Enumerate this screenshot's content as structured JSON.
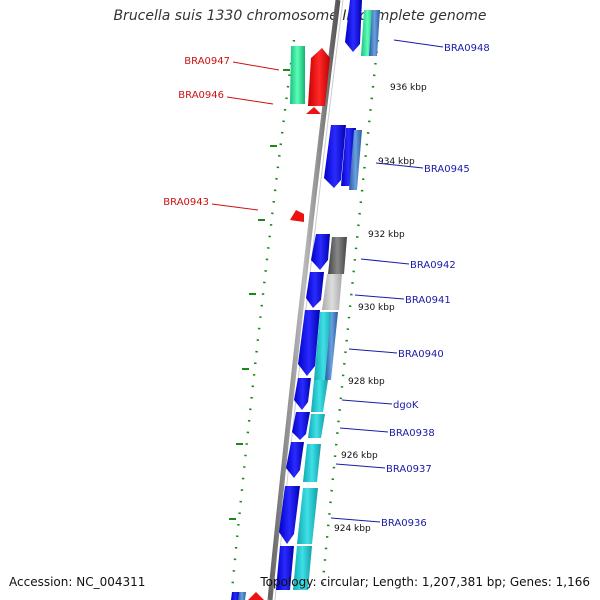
{
  "title": "Brucella suis 1330 chromosome II, complete genome",
  "footer": {
    "accession": "Accession: NC_004311",
    "topology": "Topology: circular; Length: 1,207,381 bp; Genes: 1,166"
  },
  "ticks": [
    "936 kbp",
    "934 kbp",
    "932 kbp",
    "930 kbp",
    "928 kbp",
    "926 kbp",
    "924 kbp"
  ],
  "genes_forward": [
    "BRA0948",
    "BRA0945",
    "BRA0942",
    "BRA0941",
    "BRA0940",
    "dgoK",
    "BRA0938",
    "BRA0937",
    "BRA0936"
  ],
  "genes_reverse": [
    "BRA0947",
    "BRA0946",
    "BRA0943"
  ],
  "colors": {
    "forward_strand": "#1a1ae6",
    "reverse_strand": "#ee1111",
    "cog_cyan": "#22c6cc",
    "cog_green": "#22e08a",
    "cog_gray": "#555555",
    "backbone": "#888888"
  }
}
